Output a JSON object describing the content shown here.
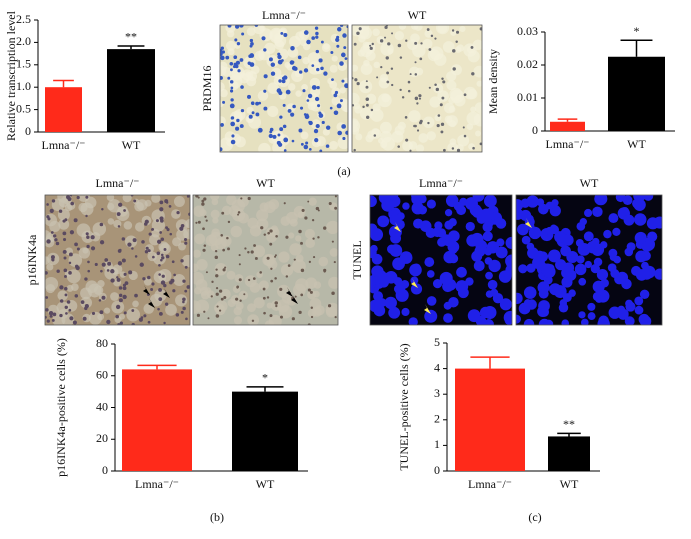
{
  "chart_data": [
    {
      "type": "bar",
      "ylabel": "Relative transcription level",
      "categories": [
        "Lmna⁻/⁻",
        "WT"
      ],
      "values": [
        1.0,
        1.85
      ],
      "errors": [
        0.15,
        0.07
      ],
      "colors": [
        "#ff2a1a",
        "#000000"
      ],
      "ylim": [
        0,
        2.5
      ],
      "yticks": [
        0,
        0.5,
        {
          "value": 1,
          "label": "1.0"
        },
        1.5,
        {
          "value": 2,
          "label": "2.0"
        },
        2.5
      ],
      "annotation": "**"
    },
    {
      "type": "bar",
      "ylabel": "Mean density",
      "categories": [
        "Lmna⁻/⁻",
        "WT"
      ],
      "values": [
        0.0028,
        0.0225
      ],
      "errors": [
        0.0008,
        0.005
      ],
      "colors": [
        "#ff2a1a",
        "#000000"
      ],
      "ylim": [
        0,
        0.03
      ],
      "yticks": [
        0,
        0.01,
        0.02,
        0.03
      ],
      "annotation": "*"
    },
    {
      "type": "bar",
      "ylabel": "p16INK4a-positive cells (%)",
      "categories": [
        "Lmna⁻/⁻",
        "WT"
      ],
      "values": [
        64,
        50
      ],
      "errors": [
        2.5,
        3
      ],
      "colors": [
        "#ff2a1a",
        "#000000"
      ],
      "ylim": [
        0,
        80
      ],
      "yticks": [
        0,
        20,
        40,
        60,
        80
      ],
      "annotation": "*"
    },
    {
      "type": "bar",
      "ylabel": "TUNEL-positive cells (%)",
      "categories": [
        "Lmna⁻/⁻",
        "WT"
      ],
      "values": [
        4.0,
        1.35
      ],
      "errors": [
        0.45,
        0.12
      ],
      "colors": [
        "#ff2a1a",
        "#000000"
      ],
      "ylim": [
        0,
        5
      ],
      "yticks": [
        0,
        1,
        2,
        3,
        4,
        5
      ],
      "annotation": "**"
    }
  ],
  "image_panels": [
    {
      "label": "PRDM16",
      "titles": [
        "Lmna⁻/⁻",
        "WT"
      ]
    },
    {
      "label": "p16INK4a",
      "titles": [
        "Lmna⁻/⁻",
        "WT"
      ]
    },
    {
      "label": "TUNEL",
      "titles": [
        "Lmna⁻/⁻",
        "WT"
      ]
    }
  ],
  "panel_labels": [
    "(a)",
    "(b)",
    "(c)"
  ]
}
